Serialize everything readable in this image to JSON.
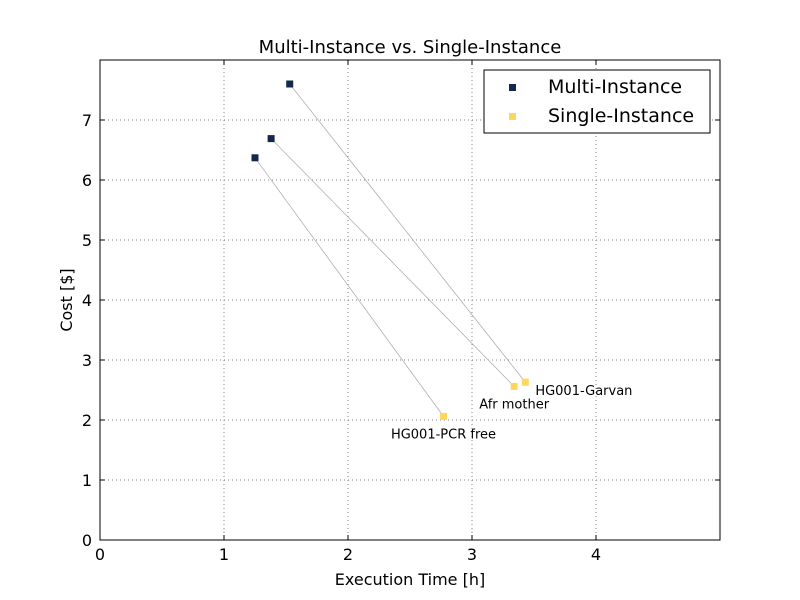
{
  "chart_data": {
    "type": "scatter",
    "title": "Multi-Instance vs. Single-Instance",
    "xlabel": "Execution Time [h]",
    "ylabel": "Cost [$]",
    "xlim": [
      0,
      5
    ],
    "ylim": [
      0,
      8
    ],
    "xticks": [
      0,
      1,
      2,
      3,
      4
    ],
    "yticks": [
      0,
      1,
      2,
      3,
      4,
      5,
      6,
      7
    ],
    "grid": true,
    "legend_position": "upper right",
    "series": [
      {
        "name": "Multi-Instance",
        "color": "#13284b",
        "marker": "square",
        "points": [
          {
            "x": 1.25,
            "y": 6.37
          },
          {
            "x": 1.38,
            "y": 6.69
          },
          {
            "x": 1.53,
            "y": 7.6
          }
        ]
      },
      {
        "name": "Single-Instance",
        "color": "#fed65d",
        "marker": "square",
        "points": [
          {
            "x": 2.77,
            "y": 2.06
          },
          {
            "x": 3.34,
            "y": 2.56
          },
          {
            "x": 3.43,
            "y": 2.63
          }
        ]
      }
    ],
    "connectors": [
      {
        "from": {
          "x": 1.25,
          "y": 6.37
        },
        "to": {
          "x": 2.77,
          "y": 2.06
        }
      },
      {
        "from": {
          "x": 1.38,
          "y": 6.69
        },
        "to": {
          "x": 3.34,
          "y": 2.56
        }
      },
      {
        "from": {
          "x": 1.53,
          "y": 7.6
        },
        "to": {
          "x": 3.43,
          "y": 2.63
        }
      }
    ],
    "connector_color": "#b0b0b0",
    "annotations": [
      {
        "text": "HG001-PCR free",
        "x": 2.77,
        "y": 2.06,
        "position": "below"
      },
      {
        "text": "Afr mother",
        "x": 3.34,
        "y": 2.56,
        "position": "below"
      },
      {
        "text": "HG001-Garvan",
        "x": 3.43,
        "y": 2.63,
        "position": "below-right"
      }
    ]
  }
}
